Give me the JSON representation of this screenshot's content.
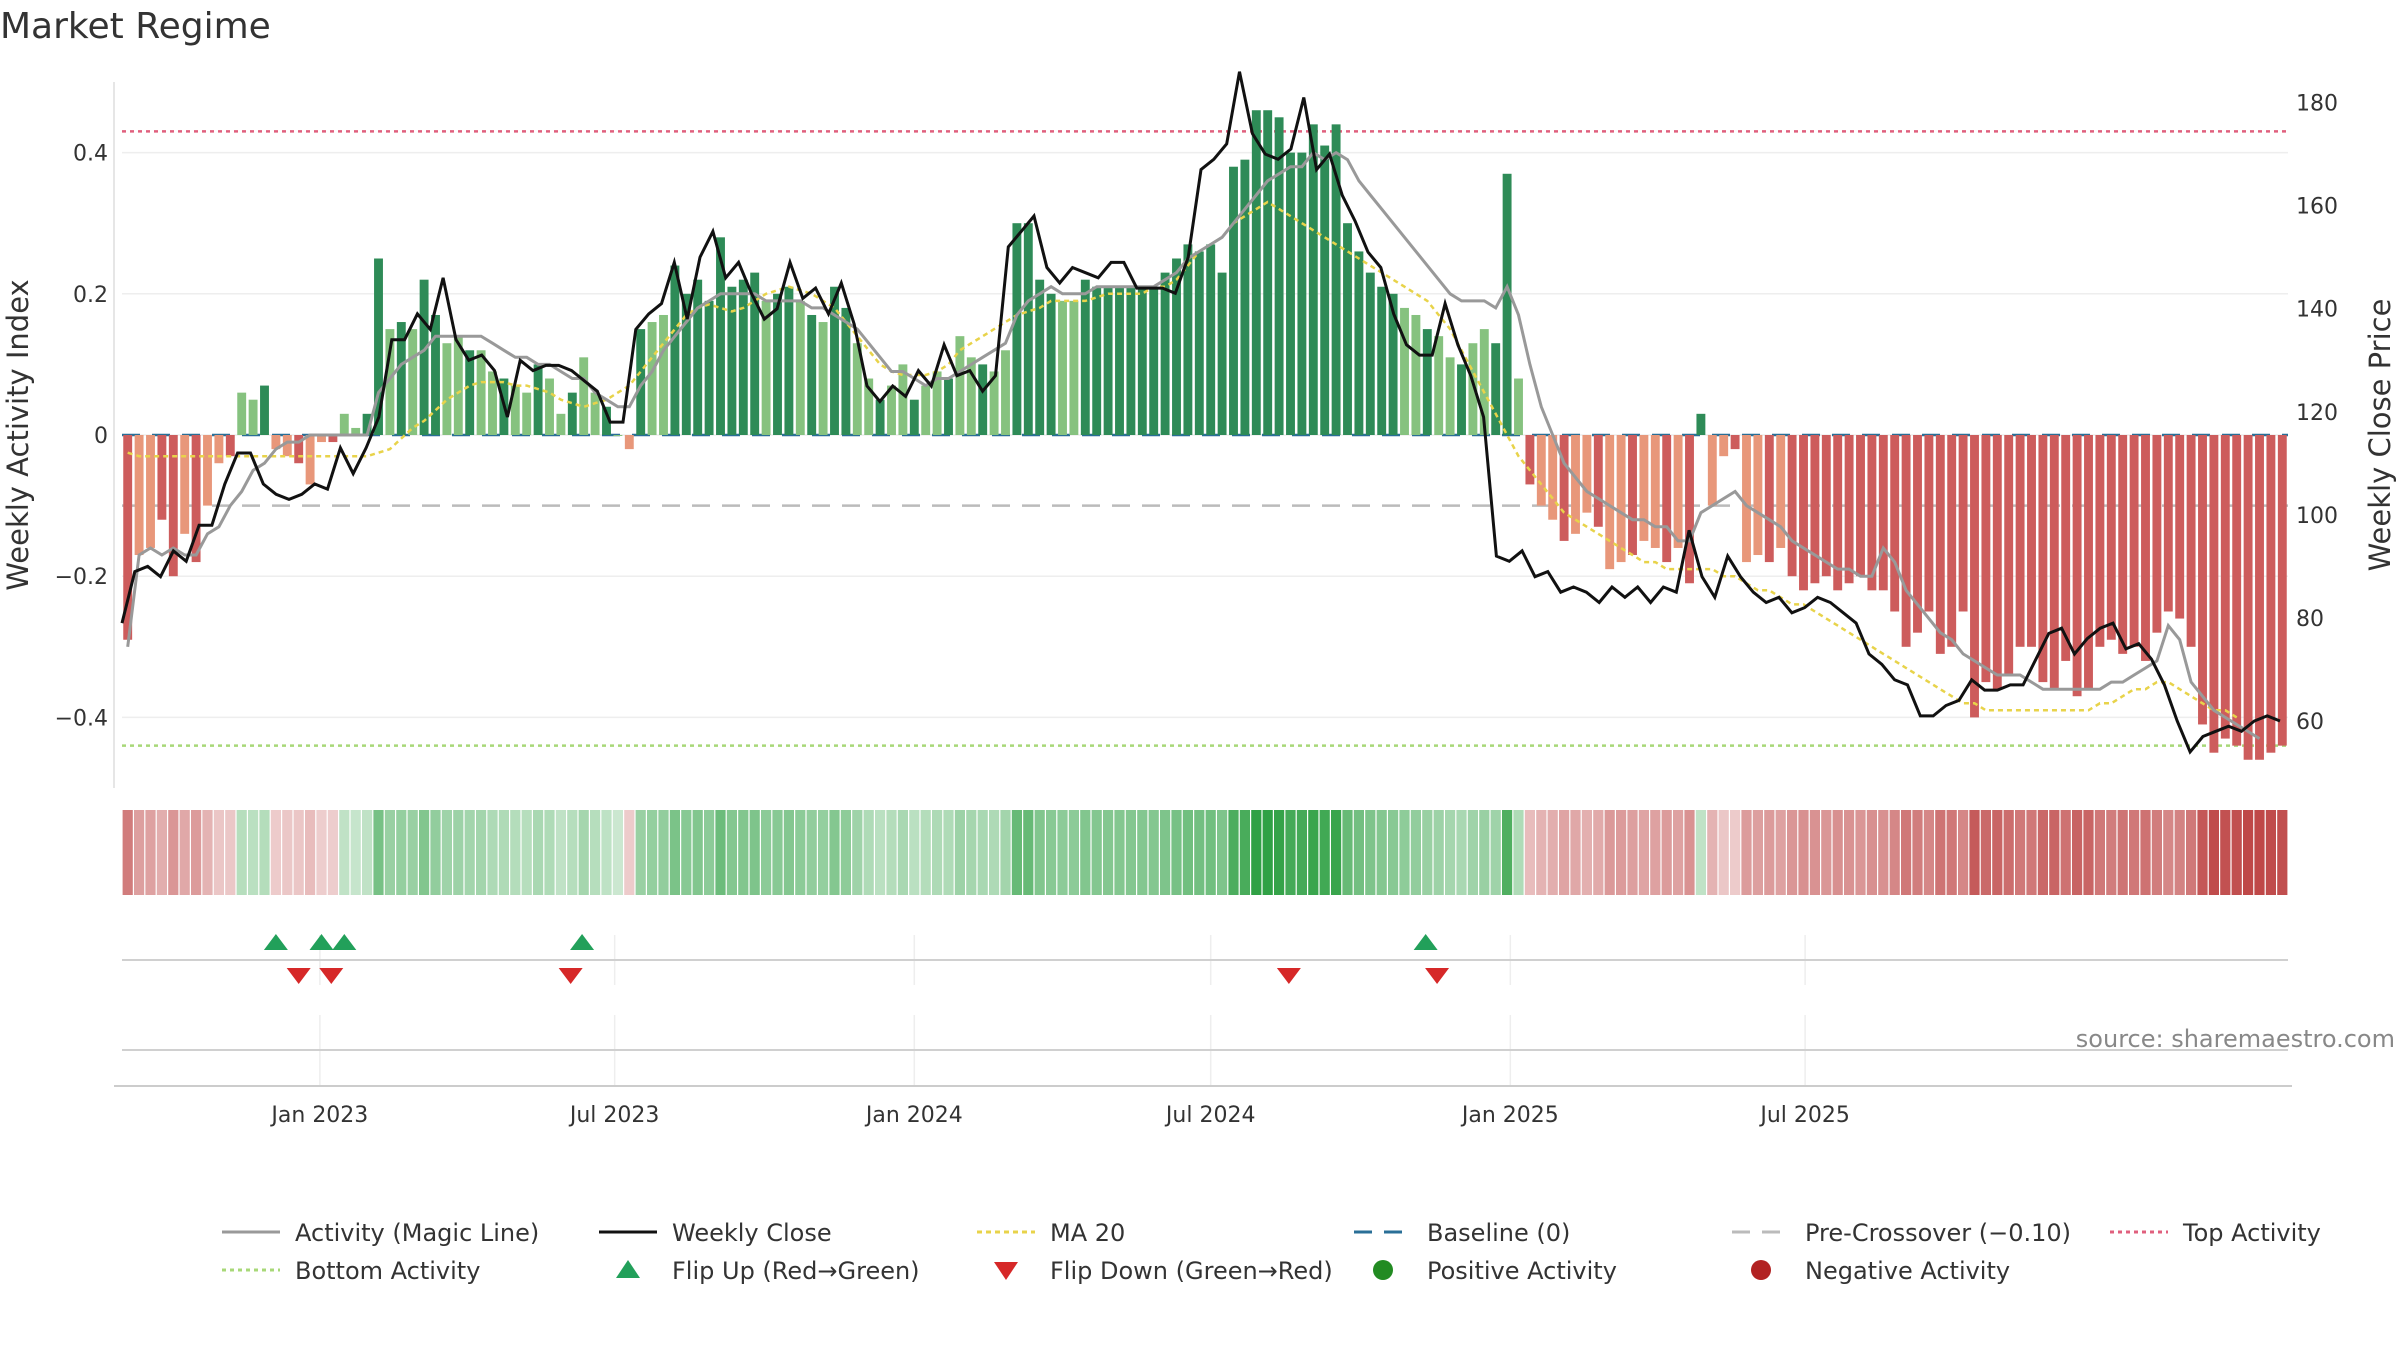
{
  "chart_data": {
    "type": "bar",
    "title": "Market Regime",
    "ylabel_left": "Weekly Activity Index",
    "ylabel_right": "Weekly Close Price",
    "source": "source: sharemaestro.com",
    "x_start": "2022-09-05",
    "x_step_days": 7,
    "x_ticks": [
      {
        "label": "Jan 2023",
        "date": "2023-01-01"
      },
      {
        "label": "Jul 2023",
        "date": "2023-07-01"
      },
      {
        "label": "Jan 2024",
        "date": "2024-01-01"
      },
      {
        "label": "Jul 2024",
        "date": "2024-07-01"
      },
      {
        "label": "Jan 2025",
        "date": "2025-01-01"
      },
      {
        "label": "Jul 2025",
        "date": "2025-07-01"
      }
    ],
    "y_left": {
      "range": [
        -0.5,
        0.5
      ],
      "ticks": [
        -0.4,
        -0.2,
        0,
        0.2,
        0.4
      ],
      "tick_labels": [
        "−0.4",
        "−0.2",
        "0",
        "0.2",
        "0.4"
      ]
    },
    "y_right": {
      "range": [
        47,
        184
      ],
      "ticks": [
        60,
        80,
        100,
        120,
        140,
        160,
        180
      ]
    },
    "reference_lines": {
      "top": 0.43,
      "bottom": -0.44,
      "baseline": 0,
      "pre_crossover": -0.1
    },
    "grid": true,
    "legend_position": "bottom",
    "colors": {
      "pos_strong": "#2e8b57",
      "pos_light": "#86c27f",
      "neg_strong": "#cd5c5c",
      "neg_light": "#e8977a",
      "magic": "#999999",
      "close": "#111111",
      "ma": "#e8d34a",
      "baseline": "#2a6f97",
      "pre": "#bbbbbb",
      "top": "#e0607e",
      "bottom": "#a8d878",
      "flip_up": "#22a05a",
      "flip_down": "#d62828"
    },
    "activity": [
      -0.29,
      -0.17,
      -0.16,
      -0.12,
      -0.2,
      -0.14,
      -0.18,
      -0.1,
      -0.04,
      -0.03,
      0.06,
      0.05,
      0.07,
      -0.02,
      -0.03,
      -0.04,
      -0.07,
      -0.01,
      -0.01,
      0.03,
      0.01,
      0.03,
      0.25,
      0.15,
      0.16,
      0.15,
      0.22,
      0.17,
      0.13,
      0.14,
      0.12,
      0.12,
      0.09,
      0.08,
      0.07,
      0.06,
      0.1,
      0.08,
      0.03,
      0.06,
      0.11,
      0.06,
      0.04,
      0.0,
      -0.02,
      0.15,
      0.16,
      0.17,
      0.24,
      0.2,
      0.22,
      0.19,
      0.28,
      0.21,
      0.22,
      0.23,
      0.19,
      0.2,
      0.21,
      0.19,
      0.17,
      0.16,
      0.21,
      0.18,
      0.13,
      0.08,
      0.05,
      0.07,
      0.1,
      0.05,
      0.07,
      0.09,
      0.08,
      0.14,
      0.11,
      0.1,
      0.09,
      0.12,
      0.3,
      0.3,
      0.22,
      0.2,
      0.19,
      0.19,
      0.22,
      0.21,
      0.21,
      0.21,
      0.21,
      0.21,
      0.21,
      0.23,
      0.25,
      0.27,
      0.26,
      0.27,
      0.23,
      0.38,
      0.39,
      0.46,
      0.46,
      0.45,
      0.4,
      0.4,
      0.44,
      0.41,
      0.44,
      0.3,
      0.26,
      0.23,
      0.21,
      0.2,
      0.18,
      0.17,
      0.15,
      0.14,
      0.11,
      0.1,
      0.13,
      0.15,
      0.13,
      0.37,
      0.08,
      -0.07,
      -0.1,
      -0.12,
      -0.15,
      -0.14,
      -0.11,
      -0.13,
      -0.19,
      -0.18,
      -0.17,
      -0.15,
      -0.16,
      -0.18,
      -0.16,
      -0.21,
      0.03,
      -0.1,
      -0.03,
      -0.02,
      -0.18,
      -0.17,
      -0.18,
      -0.16,
      -0.2,
      -0.22,
      -0.21,
      -0.2,
      -0.22,
      -0.21,
      -0.2,
      -0.22,
      -0.22,
      -0.25,
      -0.3,
      -0.28,
      -0.25,
      -0.31,
      -0.3,
      -0.25,
      -0.4,
      -0.35,
      -0.36,
      -0.34,
      -0.3,
      -0.3,
      -0.35,
      -0.36,
      -0.32,
      -0.37,
      -0.36,
      -0.3,
      -0.29,
      -0.31,
      -0.3,
      -0.32,
      -0.28,
      -0.25,
      -0.26,
      -0.3,
      -0.41,
      -0.45,
      -0.43,
      -0.44,
      -0.46,
      -0.46,
      -0.45,
      -0.44
    ],
    "magic_line": [
      -0.3,
      -0.17,
      -0.16,
      -0.17,
      -0.16,
      -0.17,
      -0.17,
      -0.14,
      -0.13,
      -0.1,
      -0.08,
      -0.05,
      -0.04,
      -0.02,
      -0.01,
      -0.01,
      0.0,
      0.0,
      0.0,
      0.0,
      0.0,
      0.0,
      0.06,
      0.08,
      0.1,
      0.11,
      0.12,
      0.14,
      0.14,
      0.14,
      0.14,
      0.14,
      0.13,
      0.12,
      0.11,
      0.11,
      0.1,
      0.1,
      0.09,
      0.08,
      0.08,
      0.06,
      0.05,
      0.04,
      0.04,
      0.07,
      0.09,
      0.12,
      0.14,
      0.16,
      0.18,
      0.19,
      0.2,
      0.2,
      0.2,
      0.2,
      0.19,
      0.19,
      0.19,
      0.19,
      0.18,
      0.18,
      0.17,
      0.16,
      0.15,
      0.13,
      0.11,
      0.09,
      0.09,
      0.08,
      0.07,
      0.08,
      0.08,
      0.09,
      0.1,
      0.11,
      0.12,
      0.13,
      0.17,
      0.19,
      0.2,
      0.21,
      0.2,
      0.2,
      0.2,
      0.21,
      0.21,
      0.21,
      0.21,
      0.21,
      0.21,
      0.22,
      0.23,
      0.25,
      0.26,
      0.27,
      0.28,
      0.3,
      0.32,
      0.34,
      0.36,
      0.37,
      0.38,
      0.38,
      0.4,
      0.39,
      0.4,
      0.39,
      0.36,
      0.34,
      0.32,
      0.3,
      0.28,
      0.26,
      0.24,
      0.22,
      0.2,
      0.19,
      0.19,
      0.19,
      0.18,
      0.21,
      0.17,
      0.1,
      0.04,
      0.0,
      -0.04,
      -0.06,
      -0.08,
      -0.09,
      -0.1,
      -0.11,
      -0.12,
      -0.12,
      -0.13,
      -0.13,
      -0.15,
      -0.15,
      -0.11,
      -0.1,
      -0.09,
      -0.08,
      -0.1,
      -0.11,
      -0.12,
      -0.13,
      -0.15,
      -0.16,
      -0.17,
      -0.18,
      -0.19,
      -0.19,
      -0.2,
      -0.2,
      -0.16,
      -0.18,
      -0.22,
      -0.24,
      -0.26,
      -0.28,
      -0.29,
      -0.31,
      -0.32,
      -0.33,
      -0.34,
      -0.34,
      -0.34,
      -0.35,
      -0.36,
      -0.36,
      -0.36,
      -0.36,
      -0.36,
      -0.36,
      -0.35,
      -0.35,
      -0.34,
      -0.33,
      -0.32,
      -0.27,
      -0.29,
      -0.35,
      -0.37,
      -0.39,
      -0.4,
      -0.41,
      -0.42,
      -0.43
    ],
    "ma20": [
      -0.025,
      -0.03,
      -0.03,
      -0.03,
      -0.03,
      -0.03,
      -0.03,
      -0.03,
      -0.03,
      -0.03,
      -0.03,
      -0.03,
      -0.03,
      -0.03,
      -0.03,
      -0.03,
      -0.03,
      -0.03,
      -0.03,
      -0.03,
      -0.03,
      -0.03,
      -0.025,
      -0.02,
      -0.005,
      0.01,
      0.02,
      0.035,
      0.05,
      0.06,
      0.07,
      0.075,
      0.075,
      0.075,
      0.07,
      0.07,
      0.065,
      0.06,
      0.05,
      0.045,
      0.04,
      0.045,
      0.05,
      0.06,
      0.07,
      0.09,
      0.11,
      0.13,
      0.15,
      0.17,
      0.18,
      0.185,
      0.18,
      0.175,
      0.18,
      0.19,
      0.2,
      0.205,
      0.21,
      0.205,
      0.2,
      0.19,
      0.18,
      0.16,
      0.14,
      0.12,
      0.1,
      0.09,
      0.085,
      0.085,
      0.085,
      0.09,
      0.1,
      0.12,
      0.13,
      0.14,
      0.15,
      0.16,
      0.17,
      0.175,
      0.18,
      0.19,
      0.19,
      0.19,
      0.19,
      0.195,
      0.2,
      0.2,
      0.2,
      0.2,
      0.21,
      0.21,
      0.22,
      0.24,
      0.26,
      0.27,
      0.28,
      0.3,
      0.31,
      0.32,
      0.33,
      0.32,
      0.31,
      0.3,
      0.29,
      0.28,
      0.27,
      0.26,
      0.25,
      0.24,
      0.23,
      0.22,
      0.21,
      0.2,
      0.19,
      0.17,
      0.15,
      0.12,
      0.09,
      0.06,
      0.03,
      0.0,
      -0.03,
      -0.05,
      -0.07,
      -0.09,
      -0.11,
      -0.12,
      -0.13,
      -0.14,
      -0.15,
      -0.16,
      -0.17,
      -0.18,
      -0.18,
      -0.19,
      -0.19,
      -0.19,
      -0.19,
      -0.19,
      -0.2,
      -0.2,
      -0.21,
      -0.22,
      -0.22,
      -0.23,
      -0.24,
      -0.24,
      -0.25,
      -0.26,
      -0.27,
      -0.28,
      -0.29,
      -0.3,
      -0.31,
      -0.32,
      -0.33,
      -0.34,
      -0.35,
      -0.36,
      -0.37,
      -0.38,
      -0.38,
      -0.39,
      -0.39,
      -0.39,
      -0.39,
      -0.39,
      -0.39,
      -0.39,
      -0.39,
      -0.39,
      -0.39,
      -0.38,
      -0.38,
      -0.37,
      -0.36,
      -0.36,
      -0.35,
      -0.35,
      -0.36,
      -0.37,
      -0.38,
      -0.39,
      -0.39,
      -0.4
    ],
    "weekly_close": [
      80,
      86,
      87,
      85,
      90,
      88,
      94,
      94,
      104,
      110,
      110,
      106,
      106,
      105,
      105,
      107,
      106,
      114,
      109,
      116,
      120,
      134,
      134,
      138,
      136,
      145,
      133,
      132,
      135,
      128,
      122,
      127,
      128,
      127,
      128,
      128,
      126,
      124,
      118,
      118,
      135,
      138,
      140,
      148,
      137,
      148,
      153,
      146,
      148,
      142,
      138,
      142,
      146,
      142,
      143,
      139,
      144,
      140,
      130,
      128,
      127,
      122,
      124,
      127,
      128,
      126,
      127,
      130,
      124,
      152,
      155,
      157,
      148,
      144,
      146,
      147,
      145,
      147,
      149,
      144,
      146,
      146,
      144,
      150,
      170,
      172,
      182,
      186,
      179,
      175,
      173,
      171,
      183,
      167,
      166,
      164,
      161,
      157,
      150,
      148,
      142,
      134,
      130,
      131,
      131,
      143,
      140,
      133,
      127,
      117,
      92,
      91,
      93,
      85,
      86,
      87,
      88,
      89,
      90,
      90,
      89,
      92,
      89,
      94,
      95,
      94,
      91,
      90,
      88,
      85,
      84,
      83,
      81,
      80,
      79,
      72,
      73,
      70,
      68,
      67,
      66,
      65,
      64,
      63,
      62,
      62,
      61,
      61,
      60,
      59,
      58,
      57,
      56,
      56,
      56,
      57,
      58,
      58,
      58,
      58,
      62,
      63,
      65,
      66,
      65,
      67,
      67,
      64,
      57,
      57,
      58,
      58,
      58,
      59,
      60,
      61
    ],
    "weekly_close_samples": [
      [
        0,
        79
      ],
      [
        1,
        89
      ],
      [
        2,
        90
      ],
      [
        3,
        88
      ],
      [
        4,
        93
      ],
      [
        5,
        91
      ],
      [
        6,
        98
      ],
      [
        7,
        98
      ],
      [
        8,
        106
      ],
      [
        9,
        112
      ],
      [
        10,
        112
      ],
      [
        11,
        106
      ],
      [
        12,
        104
      ],
      [
        13,
        103
      ],
      [
        14,
        104
      ],
      [
        15,
        106
      ],
      [
        16,
        105
      ],
      [
        17,
        113
      ],
      [
        18,
        108
      ],
      [
        19,
        113
      ],
      [
        20,
        119
      ],
      [
        21,
        134
      ],
      [
        22,
        134
      ],
      [
        23,
        139
      ],
      [
        24,
        136
      ],
      [
        25,
        146
      ],
      [
        26,
        134
      ],
      [
        27,
        130
      ],
      [
        28,
        131
      ],
      [
        29,
        128
      ],
      [
        30,
        119
      ],
      [
        31,
        130
      ],
      [
        32,
        128
      ],
      [
        33,
        129
      ],
      [
        34,
        129
      ],
      [
        35,
        128
      ],
      [
        36,
        126
      ],
      [
        37,
        124
      ],
      [
        38,
        118
      ],
      [
        39,
        118
      ],
      [
        40,
        136
      ],
      [
        41,
        139
      ],
      [
        42,
        141
      ],
      [
        43,
        149
      ],
      [
        44,
        138
      ],
      [
        45,
        150
      ],
      [
        46,
        155
      ],
      [
        47,
        146
      ],
      [
        48,
        149
      ],
      [
        49,
        143
      ],
      [
        50,
        138
      ],
      [
        51,
        140
      ],
      [
        52,
        149
      ],
      [
        53,
        142
      ],
      [
        54,
        144
      ],
      [
        55,
        139
      ],
      [
        56,
        145
      ],
      [
        57,
        137
      ],
      [
        58,
        125
      ],
      [
        59,
        122
      ],
      [
        60,
        125
      ],
      [
        61,
        123
      ],
      [
        62,
        128
      ],
      [
        63,
        125
      ],
      [
        64,
        133
      ],
      [
        65,
        127
      ],
      [
        66,
        128
      ],
      [
        67,
        124
      ],
      [
        68,
        127
      ],
      [
        69,
        152
      ],
      [
        70,
        155
      ],
      [
        71,
        158
      ],
      [
        72,
        148
      ],
      [
        73,
        145
      ],
      [
        74,
        148
      ],
      [
        75,
        147
      ],
      [
        76,
        146
      ],
      [
        77,
        149
      ],
      [
        78,
        149
      ],
      [
        79,
        144
      ],
      [
        80,
        144
      ],
      [
        81,
        144
      ],
      [
        82,
        143
      ],
      [
        83,
        150
      ],
      [
        84,
        167
      ],
      [
        85,
        169
      ],
      [
        86,
        172
      ],
      [
        87,
        186
      ],
      [
        88,
        174
      ],
      [
        89,
        170
      ],
      [
        90,
        169
      ],
      [
        91,
        171
      ],
      [
        92,
        181
      ],
      [
        93,
        167
      ],
      [
        94,
        170
      ],
      [
        95,
        162
      ],
      [
        96,
        157
      ],
      [
        97,
        151
      ],
      [
        98,
        148
      ],
      [
        99,
        139
      ],
      [
        100,
        133
      ],
      [
        101,
        131
      ],
      [
        102,
        131
      ],
      [
        103,
        141
      ],
      [
        104,
        133
      ],
      [
        105,
        127
      ],
      [
        106,
        119
      ],
      [
        107,
        92
      ],
      [
        108,
        91
      ],
      [
        109,
        93
      ],
      [
        110,
        88
      ],
      [
        111,
        89
      ],
      [
        112,
        85
      ],
      [
        113,
        86
      ],
      [
        114,
        85
      ],
      [
        115,
        83
      ],
      [
        116,
        86
      ],
      [
        117,
        84
      ],
      [
        118,
        86
      ],
      [
        119,
        83
      ],
      [
        120,
        86
      ],
      [
        121,
        85
      ],
      [
        122,
        97
      ],
      [
        123,
        88
      ],
      [
        124,
        84
      ],
      [
        125,
        92
      ],
      [
        126,
        88
      ],
      [
        127,
        85
      ],
      [
        128,
        83
      ],
      [
        129,
        84
      ],
      [
        130,
        81
      ],
      [
        131,
        82
      ],
      [
        132,
        84
      ],
      [
        133,
        83
      ],
      [
        134,
        81
      ],
      [
        135,
        79
      ],
      [
        136,
        73
      ],
      [
        137,
        71
      ],
      [
        138,
        68
      ],
      [
        139,
        67
      ],
      [
        140,
        61
      ],
      [
        141,
        61
      ],
      [
        142,
        63
      ],
      [
        143,
        64
      ],
      [
        144,
        68
      ],
      [
        145,
        66
      ],
      [
        146,
        66
      ],
      [
        147,
        67
      ],
      [
        148,
        67
      ],
      [
        149,
        72
      ],
      [
        150,
        77
      ],
      [
        151,
        78
      ],
      [
        152,
        73
      ],
      [
        153,
        76
      ],
      [
        154,
        78
      ],
      [
        155,
        79
      ],
      [
        156,
        74
      ],
      [
        157,
        75
      ],
      [
        158,
        72
      ],
      [
        159,
        67
      ],
      [
        160,
        60
      ],
      [
        161,
        54
      ],
      [
        162,
        57
      ],
      [
        163,
        58
      ],
      [
        164,
        59
      ],
      [
        165,
        58
      ],
      [
        166,
        60
      ],
      [
        167,
        61
      ],
      [
        168,
        60
      ]
    ],
    "flips": [
      {
        "type": "up",
        "date": "2022-12-05"
      },
      {
        "type": "down",
        "date": "2022-12-19"
      },
      {
        "type": "up",
        "date": "2023-01-02"
      },
      {
        "type": "down",
        "date": "2023-01-08"
      },
      {
        "type": "up",
        "date": "2023-01-16"
      },
      {
        "type": "down",
        "date": "2023-06-04"
      },
      {
        "type": "up",
        "date": "2023-06-11"
      },
      {
        "type": "down",
        "date": "2024-08-18"
      },
      {
        "type": "up",
        "date": "2024-11-10"
      },
      {
        "type": "down",
        "date": "2024-11-17"
      }
    ],
    "legend": [
      {
        "label": "Activity (Magic Line)",
        "style": "line-magic"
      },
      {
        "label": "Weekly Close",
        "style": "line-close"
      },
      {
        "label": "MA 20",
        "style": "line-ma"
      },
      {
        "label": "Baseline (0)",
        "style": "line-baseline"
      },
      {
        "label": "Pre-Crossover (−0.10)",
        "style": "line-pre"
      },
      {
        "label": "Top Activity",
        "style": "line-top"
      },
      {
        "label": "Bottom Activity",
        "style": "line-bottom"
      },
      {
        "label": "Flip Up (Red→Green)",
        "style": "marker-up"
      },
      {
        "label": "Flip Down (Green→Red)",
        "style": "marker-down"
      },
      {
        "label": "Positive Activity",
        "style": "marker-pos"
      },
      {
        "label": "Negative Activity",
        "style": "marker-neg"
      }
    ]
  }
}
